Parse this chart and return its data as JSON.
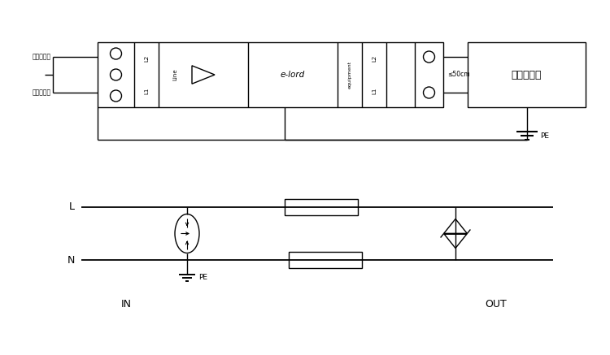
{
  "bg_color": "#ffffff",
  "line_color": "#000000",
  "line_width": 1.0,
  "top_diagram": {
    "label1": "外接信号线",
    "label2": "外接信号线",
    "line_label": "Line",
    "equipment_label": "equipment",
    "center_label": "e-lord",
    "dist_label": "≤50cm",
    "l1_label": "L1",
    "l2_label": "L2",
    "protected_label": "被保护设备",
    "pe_label": "PE"
  },
  "bottom_diagram": {
    "L_label": "L",
    "N_label": "N",
    "PE_label": "PE",
    "IN_label": "IN",
    "OUT_label": "OUT"
  }
}
